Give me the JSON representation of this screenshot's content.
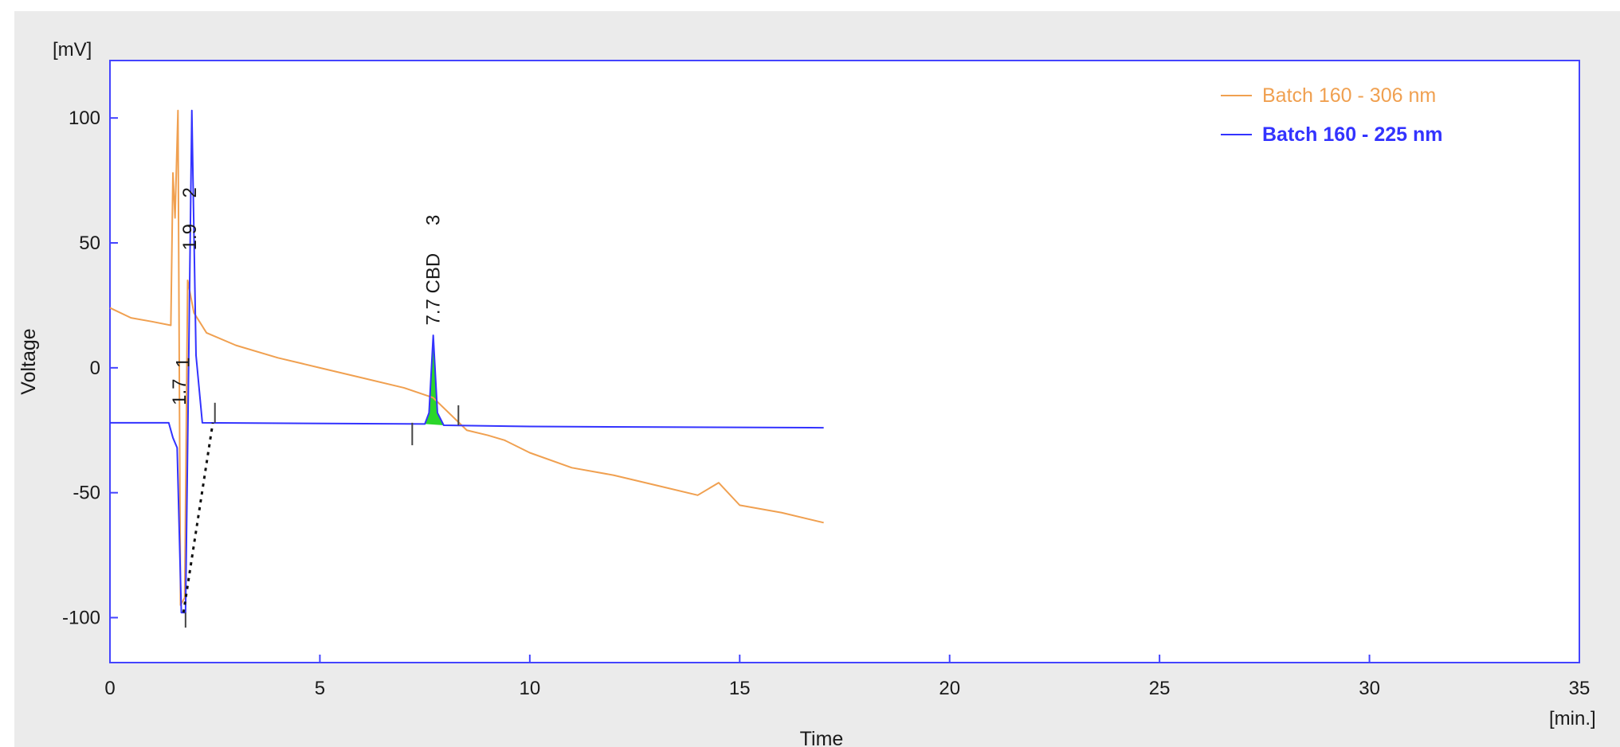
{
  "chart_data": {
    "type": "line",
    "xlabel": "Time",
    "xunit": "[min.]",
    "ylabel": "Voltage",
    "yunit": "[mV]",
    "xlim": [
      0,
      35
    ],
    "ylim": [
      -118,
      123
    ],
    "xticks": [
      0,
      5,
      10,
      15,
      20,
      25,
      30,
      35
    ],
    "yticks": [
      100,
      50,
      0,
      -50,
      -100
    ],
    "grid": false,
    "legend_position": "top-right",
    "series": [
      {
        "name": "Batch 160 - 306 nm",
        "color": "#f0a050",
        "bold": false,
        "points": [
          [
            0,
            24
          ],
          [
            0.5,
            20
          ],
          [
            1.0,
            18.5
          ],
          [
            1.45,
            17
          ],
          [
            1.5,
            78
          ],
          [
            1.55,
            60
          ],
          [
            1.62,
            103
          ],
          [
            1.68,
            -95
          ],
          [
            1.78,
            -92
          ],
          [
            1.85,
            35
          ],
          [
            2.0,
            22
          ],
          [
            2.3,
            14
          ],
          [
            3,
            9
          ],
          [
            4,
            4
          ],
          [
            5,
            0
          ],
          [
            6,
            -4
          ],
          [
            7,
            -8
          ],
          [
            7.7,
            -12
          ],
          [
            8.5,
            -25
          ],
          [
            9.0,
            -27
          ],
          [
            9.4,
            -29
          ],
          [
            10,
            -34
          ],
          [
            11,
            -40
          ],
          [
            12,
            -43
          ],
          [
            13,
            -47
          ],
          [
            14,
            -51
          ],
          [
            14.5,
            -46
          ],
          [
            15,
            -55
          ],
          [
            16,
            -58
          ],
          [
            17,
            -62
          ]
        ]
      },
      {
        "name": "Batch 160 - 225 nm",
        "color": "#3333ff",
        "bold": true,
        "points": [
          [
            0,
            -22
          ],
          [
            1.4,
            -22
          ],
          [
            1.5,
            -28
          ],
          [
            1.6,
            -32
          ],
          [
            1.7,
            -98
          ],
          [
            1.8,
            -98
          ],
          [
            1.95,
            103
          ],
          [
            2.05,
            5
          ],
          [
            2.2,
            -22
          ],
          [
            7.5,
            -22.5
          ],
          [
            7.6,
            -18
          ],
          [
            7.7,
            13
          ],
          [
            7.8,
            -18
          ],
          [
            7.95,
            -23
          ],
          [
            10,
            -23.5
          ],
          [
            17,
            -24
          ]
        ]
      }
    ],
    "peaks": [
      {
        "label": "1.7",
        "time": 1.7
      },
      {
        "label": "1",
        "time": 1.7
      },
      {
        "label": "1.9",
        "time": 1.9
      },
      {
        "label": "2",
        "time": 1.9
      },
      {
        "label": "7.7 CBD",
        "time": 7.7
      },
      {
        "label": "3",
        "time": 7.7
      }
    ],
    "baseline_markers": [
      {
        "time": 1.8,
        "from": -104,
        "to": -98
      },
      {
        "time": 2.5,
        "from": -22,
        "to": -14
      },
      {
        "time": 7.2,
        "from": -31,
        "to": -22
      },
      {
        "time": 8.3,
        "from": -23,
        "to": -15
      }
    ],
    "baseline_dotted": [
      [
        1.75,
        -98
      ],
      [
        2.45,
        -22
      ]
    ],
    "peak_fill": {
      "from": 7.5,
      "to": 7.95,
      "color": "#2bd62b"
    }
  }
}
